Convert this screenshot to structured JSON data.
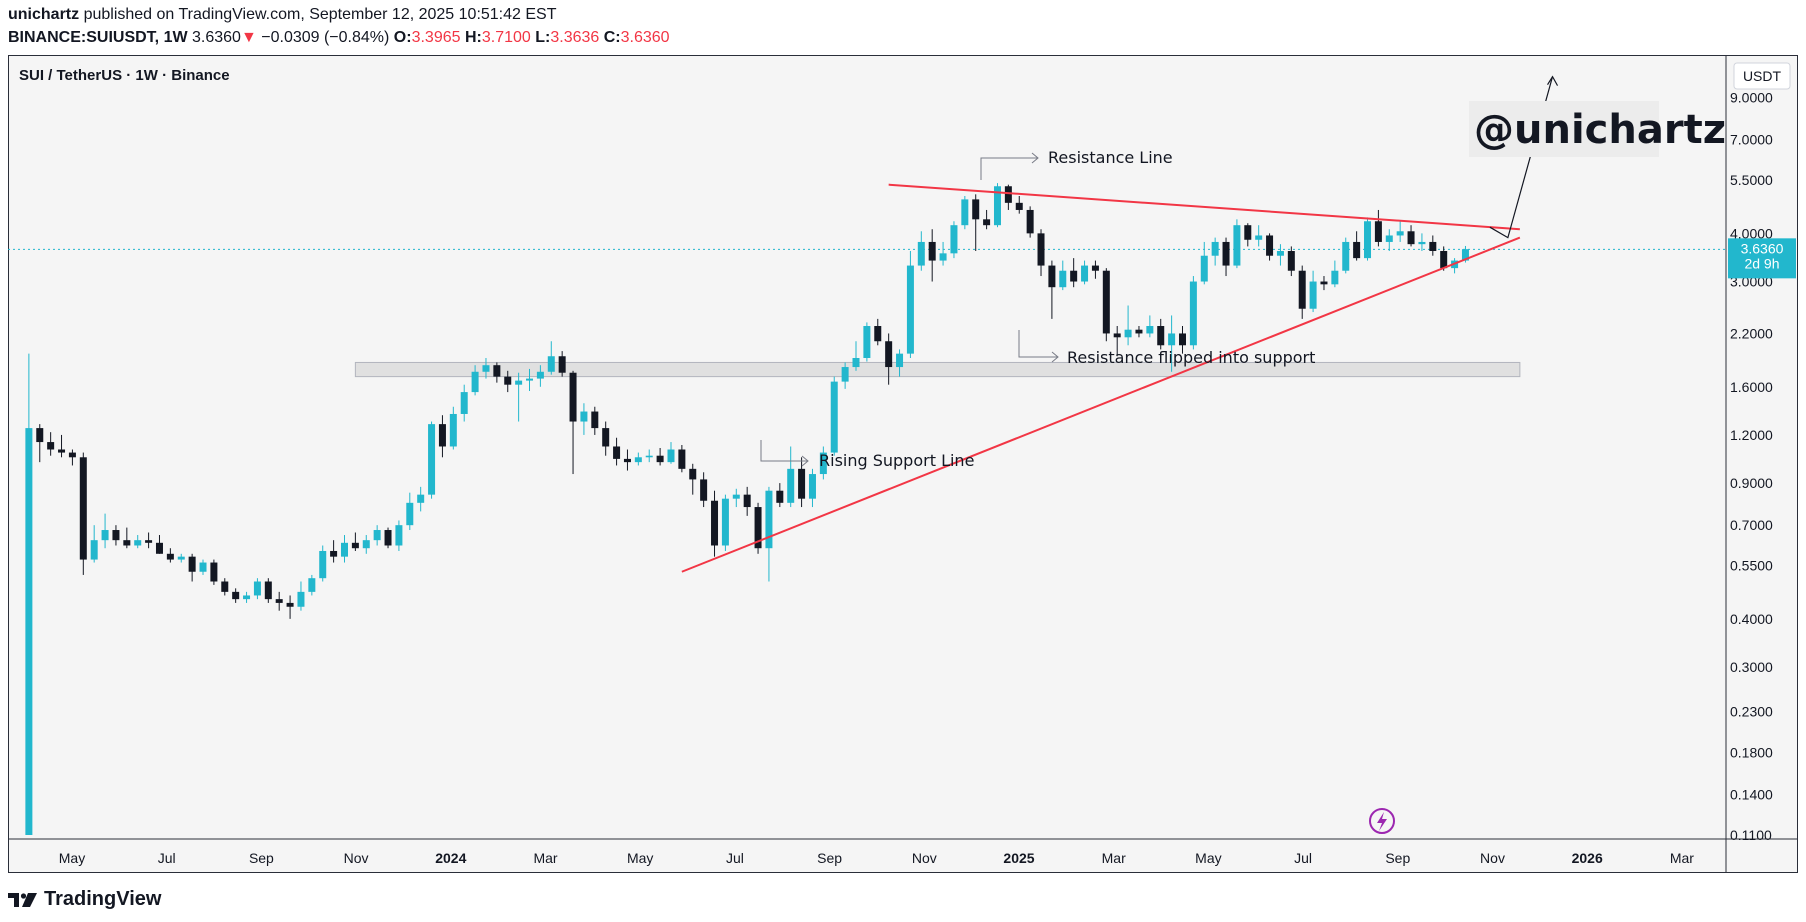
{
  "header": {
    "line1_user": "unichartz",
    "line1_rest": "published on TradingView.com, September 12, 2025 10:51:42 EST",
    "symbol": "BINANCE:SUIUSDT, 1W",
    "last": "3.6360",
    "arrow": "▼",
    "change": "−0.0309 (−0.84%)",
    "o_label": "O:",
    "o_value": "3.3965",
    "h_label": "H:",
    "h_value": "3.7100",
    "l_label": "L:",
    "l_value": "3.3636",
    "c_label": "C:",
    "c_value": "3.6360"
  },
  "pair_title": "SUI / TetherUS · 1W · Binance",
  "currency": "USDT",
  "price_badge": {
    "price": "3.6360",
    "countdown": "2d 9h"
  },
  "watermark": "@unichartz",
  "footer": {
    "brand": "TradingView"
  },
  "colors": {
    "up": "#22b7cd",
    "down": "#131722",
    "trendline": "#f23645",
    "last_price": "#22b7cd"
  },
  "chart_data": {
    "type": "candlestick",
    "scale": "log",
    "ylim": [
      0.11,
      11
    ],
    "y_ticks": [
      "9.0000",
      "7.0000",
      "5.5000",
      "4.0000",
      "3.0000",
      "2.2000",
      "1.6000",
      "1.2000",
      "0.9000",
      "0.7000",
      "0.5500",
      "0.4000",
      "0.3000",
      "0.2300",
      "0.1800",
      "0.1400",
      "0.1100"
    ],
    "x_ticks": [
      "May",
      "Jul",
      "Sep",
      "Nov",
      "2024",
      "Mar",
      "May",
      "Jul",
      "Sep",
      "Nov",
      "2025",
      "Mar",
      "May",
      "Jul",
      "Sep",
      "Nov",
      "2026",
      "Mar"
    ],
    "x_range": [
      "2023-04-24",
      "2026-04-15"
    ],
    "candles": [
      {
        "d": "2023-05-01",
        "o": 0.11,
        "h": 1.95,
        "l": 0.11,
        "c": 1.25
      },
      {
        "d": "2023-05-08",
        "o": 1.25,
        "h": 1.28,
        "l": 1.02,
        "c": 1.15
      },
      {
        "d": "2023-05-15",
        "o": 1.15,
        "h": 1.22,
        "l": 1.06,
        "c": 1.1
      },
      {
        "d": "2023-05-22",
        "o": 1.1,
        "h": 1.2,
        "l": 1.05,
        "c": 1.08
      },
      {
        "d": "2023-05-29",
        "o": 1.08,
        "h": 1.1,
        "l": 1.0,
        "c": 1.05
      },
      {
        "d": "2023-06-05",
        "o": 1.05,
        "h": 1.08,
        "l": 0.52,
        "c": 0.57
      },
      {
        "d": "2023-06-12",
        "o": 0.57,
        "h": 0.7,
        "l": 0.56,
        "c": 0.64
      },
      {
        "d": "2023-06-19",
        "o": 0.64,
        "h": 0.75,
        "l": 0.61,
        "c": 0.68
      },
      {
        "d": "2023-06-26",
        "o": 0.68,
        "h": 0.7,
        "l": 0.62,
        "c": 0.64
      },
      {
        "d": "2023-07-03",
        "o": 0.64,
        "h": 0.69,
        "l": 0.61,
        "c": 0.62
      },
      {
        "d": "2023-07-10",
        "o": 0.62,
        "h": 0.66,
        "l": 0.61,
        "c": 0.64
      },
      {
        "d": "2023-07-17",
        "o": 0.64,
        "h": 0.67,
        "l": 0.61,
        "c": 0.63
      },
      {
        "d": "2023-07-24",
        "o": 0.63,
        "h": 0.66,
        "l": 0.59,
        "c": 0.59
      },
      {
        "d": "2023-07-31",
        "o": 0.59,
        "h": 0.61,
        "l": 0.56,
        "c": 0.57
      },
      {
        "d": "2023-08-07",
        "o": 0.57,
        "h": 0.59,
        "l": 0.56,
        "c": 0.58
      },
      {
        "d": "2023-08-14",
        "o": 0.58,
        "h": 0.59,
        "l": 0.5,
        "c": 0.53
      },
      {
        "d": "2023-08-21",
        "o": 0.53,
        "h": 0.57,
        "l": 0.52,
        "c": 0.56
      },
      {
        "d": "2023-08-28",
        "o": 0.56,
        "h": 0.57,
        "l": 0.49,
        "c": 0.5
      },
      {
        "d": "2023-09-04",
        "o": 0.5,
        "h": 0.51,
        "l": 0.46,
        "c": 0.47
      },
      {
        "d": "2023-09-11",
        "o": 0.47,
        "h": 0.48,
        "l": 0.44,
        "c": 0.45
      },
      {
        "d": "2023-09-18",
        "o": 0.45,
        "h": 0.47,
        "l": 0.44,
        "c": 0.46
      },
      {
        "d": "2023-09-25",
        "o": 0.46,
        "h": 0.51,
        "l": 0.45,
        "c": 0.5
      },
      {
        "d": "2023-10-02",
        "o": 0.5,
        "h": 0.51,
        "l": 0.44,
        "c": 0.45
      },
      {
        "d": "2023-10-09",
        "o": 0.45,
        "h": 0.47,
        "l": 0.42,
        "c": 0.44
      },
      {
        "d": "2023-10-16",
        "o": 0.44,
        "h": 0.46,
        "l": 0.4,
        "c": 0.43
      },
      {
        "d": "2023-10-23",
        "o": 0.43,
        "h": 0.5,
        "l": 0.42,
        "c": 0.47
      },
      {
        "d": "2023-10-30",
        "o": 0.47,
        "h": 0.52,
        "l": 0.46,
        "c": 0.51
      },
      {
        "d": "2023-11-06",
        "o": 0.51,
        "h": 0.62,
        "l": 0.5,
        "c": 0.6
      },
      {
        "d": "2023-11-13",
        "o": 0.6,
        "h": 0.64,
        "l": 0.56,
        "c": 0.58
      },
      {
        "d": "2023-11-20",
        "o": 0.58,
        "h": 0.66,
        "l": 0.56,
        "c": 0.63
      },
      {
        "d": "2023-11-27",
        "o": 0.63,
        "h": 0.67,
        "l": 0.6,
        "c": 0.61
      },
      {
        "d": "2023-12-04",
        "o": 0.61,
        "h": 0.66,
        "l": 0.59,
        "c": 0.64
      },
      {
        "d": "2023-12-11",
        "o": 0.64,
        "h": 0.7,
        "l": 0.62,
        "c": 0.68
      },
      {
        "d": "2023-12-18",
        "o": 0.68,
        "h": 0.69,
        "l": 0.61,
        "c": 0.62
      },
      {
        "d": "2023-12-25",
        "o": 0.62,
        "h": 0.72,
        "l": 0.6,
        "c": 0.7
      },
      {
        "d": "2024-01-01",
        "o": 0.7,
        "h": 0.85,
        "l": 0.68,
        "c": 0.8
      },
      {
        "d": "2024-01-08",
        "o": 0.8,
        "h": 0.88,
        "l": 0.76,
        "c": 0.84
      },
      {
        "d": "2024-01-15",
        "o": 0.84,
        "h": 1.3,
        "l": 0.82,
        "c": 1.28
      },
      {
        "d": "2024-01-22",
        "o": 1.28,
        "h": 1.35,
        "l": 1.05,
        "c": 1.12
      },
      {
        "d": "2024-01-29",
        "o": 1.12,
        "h": 1.42,
        "l": 1.1,
        "c": 1.36
      },
      {
        "d": "2024-02-05",
        "o": 1.36,
        "h": 1.62,
        "l": 1.3,
        "c": 1.55
      },
      {
        "d": "2024-02-12",
        "o": 1.55,
        "h": 1.82,
        "l": 1.52,
        "c": 1.75
      },
      {
        "d": "2024-02-19",
        "o": 1.75,
        "h": 1.9,
        "l": 1.68,
        "c": 1.82
      },
      {
        "d": "2024-02-26",
        "o": 1.82,
        "h": 1.85,
        "l": 1.64,
        "c": 1.7
      },
      {
        "d": "2024-03-04",
        "o": 1.7,
        "h": 1.76,
        "l": 1.55,
        "c": 1.62
      },
      {
        "d": "2024-03-11",
        "o": 1.62,
        "h": 1.74,
        "l": 1.3,
        "c": 1.66
      },
      {
        "d": "2024-03-18",
        "o": 1.66,
        "h": 1.78,
        "l": 1.56,
        "c": 1.68
      },
      {
        "d": "2024-03-25",
        "o": 1.68,
        "h": 1.82,
        "l": 1.6,
        "c": 1.75
      },
      {
        "d": "2024-04-01",
        "o": 1.75,
        "h": 2.1,
        "l": 1.72,
        "c": 1.92
      },
      {
        "d": "2024-04-08",
        "o": 1.92,
        "h": 1.98,
        "l": 1.7,
        "c": 1.74
      },
      {
        "d": "2024-04-15",
        "o": 1.74,
        "h": 1.76,
        "l": 0.95,
        "c": 1.3
      },
      {
        "d": "2024-04-22",
        "o": 1.3,
        "h": 1.45,
        "l": 1.2,
        "c": 1.38
      },
      {
        "d": "2024-04-29",
        "o": 1.38,
        "h": 1.42,
        "l": 1.2,
        "c": 1.25
      },
      {
        "d": "2024-05-06",
        "o": 1.25,
        "h": 1.3,
        "l": 1.06,
        "c": 1.12
      },
      {
        "d": "2024-05-13",
        "o": 1.12,
        "h": 1.18,
        "l": 1.0,
        "c": 1.04
      },
      {
        "d": "2024-05-20",
        "o": 1.04,
        "h": 1.1,
        "l": 0.97,
        "c": 1.02
      },
      {
        "d": "2024-05-27",
        "o": 1.02,
        "h": 1.08,
        "l": 1.0,
        "c": 1.05
      },
      {
        "d": "2024-06-03",
        "o": 1.05,
        "h": 1.1,
        "l": 1.02,
        "c": 1.06
      },
      {
        "d": "2024-06-10",
        "o": 1.06,
        "h": 1.11,
        "l": 1.0,
        "c": 1.02
      },
      {
        "d": "2024-06-17",
        "o": 1.02,
        "h": 1.15,
        "l": 1.01,
        "c": 1.1
      },
      {
        "d": "2024-06-24",
        "o": 1.1,
        "h": 1.13,
        "l": 0.96,
        "c": 0.98
      },
      {
        "d": "2024-07-01",
        "o": 0.98,
        "h": 1.01,
        "l": 0.84,
        "c": 0.92
      },
      {
        "d": "2024-07-08",
        "o": 0.92,
        "h": 0.96,
        "l": 0.78,
        "c": 0.81
      },
      {
        "d": "2024-07-15",
        "o": 0.81,
        "h": 0.86,
        "l": 0.58,
        "c": 0.62
      },
      {
        "d": "2024-07-22",
        "o": 0.62,
        "h": 0.84,
        "l": 0.6,
        "c": 0.82
      },
      {
        "d": "2024-07-29",
        "o": 0.82,
        "h": 0.87,
        "l": 0.78,
        "c": 0.84
      },
      {
        "d": "2024-08-05",
        "o": 0.84,
        "h": 0.88,
        "l": 0.74,
        "c": 0.78
      },
      {
        "d": "2024-08-12",
        "o": 0.78,
        "h": 0.8,
        "l": 0.59,
        "c": 0.61
      },
      {
        "d": "2024-08-19",
        "o": 0.61,
        "h": 0.88,
        "l": 0.5,
        "c": 0.86
      },
      {
        "d": "2024-08-26",
        "o": 0.86,
        "h": 0.9,
        "l": 0.78,
        "c": 0.8
      },
      {
        "d": "2024-09-02",
        "o": 0.8,
        "h": 1.12,
        "l": 0.78,
        "c": 0.98
      },
      {
        "d": "2024-09-09",
        "o": 0.98,
        "h": 1.05,
        "l": 0.78,
        "c": 0.82
      },
      {
        "d": "2024-09-16",
        "o": 0.82,
        "h": 0.98,
        "l": 0.78,
        "c": 0.95
      },
      {
        "d": "2024-09-23",
        "o": 0.95,
        "h": 1.12,
        "l": 0.92,
        "c": 1.08
      },
      {
        "d": "2024-09-30",
        "o": 1.08,
        "h": 1.7,
        "l": 1.06,
        "c": 1.65
      },
      {
        "d": "2024-10-07",
        "o": 1.65,
        "h": 1.85,
        "l": 1.58,
        "c": 1.8
      },
      {
        "d": "2024-10-14",
        "o": 1.8,
        "h": 2.1,
        "l": 1.76,
        "c": 1.9
      },
      {
        "d": "2024-10-21",
        "o": 1.9,
        "h": 2.35,
        "l": 1.86,
        "c": 2.3
      },
      {
        "d": "2024-10-28",
        "o": 2.3,
        "h": 2.4,
        "l": 2.05,
        "c": 2.1
      },
      {
        "d": "2024-11-04",
        "o": 2.1,
        "h": 2.2,
        "l": 1.62,
        "c": 1.8
      },
      {
        "d": "2024-11-11",
        "o": 1.8,
        "h": 2.0,
        "l": 1.7,
        "c": 1.95
      },
      {
        "d": "2024-11-18",
        "o": 1.95,
        "h": 3.6,
        "l": 1.9,
        "c": 3.3
      },
      {
        "d": "2024-11-25",
        "o": 3.3,
        "h": 4.05,
        "l": 3.2,
        "c": 3.8
      },
      {
        "d": "2024-12-02",
        "o": 3.8,
        "h": 4.1,
        "l": 3.0,
        "c": 3.4
      },
      {
        "d": "2024-12-09",
        "o": 3.4,
        "h": 3.8,
        "l": 3.3,
        "c": 3.55
      },
      {
        "d": "2024-12-16",
        "o": 3.55,
        "h": 4.3,
        "l": 3.45,
        "c": 4.2
      },
      {
        "d": "2024-12-23",
        "o": 4.2,
        "h": 5.0,
        "l": 4.1,
        "c": 4.9
      },
      {
        "d": "2024-12-30",
        "o": 4.9,
        "h": 5.05,
        "l": 3.6,
        "c": 4.35
      },
      {
        "d": "2025-01-06",
        "o": 4.35,
        "h": 4.6,
        "l": 4.1,
        "c": 4.2
      },
      {
        "d": "2025-01-13",
        "o": 4.2,
        "h": 5.4,
        "l": 4.15,
        "c": 5.3
      },
      {
        "d": "2025-01-20",
        "o": 5.3,
        "h": 5.35,
        "l": 4.6,
        "c": 4.8
      },
      {
        "d": "2025-01-27",
        "o": 4.8,
        "h": 5.0,
        "l": 4.5,
        "c": 4.6
      },
      {
        "d": "2025-02-03",
        "o": 4.6,
        "h": 4.7,
        "l": 3.9,
        "c": 4.0
      },
      {
        "d": "2025-02-10",
        "o": 4.0,
        "h": 4.1,
        "l": 3.1,
        "c": 3.3
      },
      {
        "d": "2025-02-17",
        "o": 3.3,
        "h": 3.4,
        "l": 2.4,
        "c": 2.9
      },
      {
        "d": "2025-02-24",
        "o": 2.9,
        "h": 3.4,
        "l": 2.85,
        "c": 3.2
      },
      {
        "d": "2025-03-03",
        "o": 3.2,
        "h": 3.45,
        "l": 2.9,
        "c": 3.0
      },
      {
        "d": "2025-03-10",
        "o": 3.0,
        "h": 3.4,
        "l": 2.95,
        "c": 3.3
      },
      {
        "d": "2025-03-17",
        "o": 3.3,
        "h": 3.4,
        "l": 3.05,
        "c": 3.2
      },
      {
        "d": "2025-03-24",
        "o": 3.2,
        "h": 3.25,
        "l": 2.1,
        "c": 2.2
      },
      {
        "d": "2025-03-31",
        "o": 2.2,
        "h": 2.3,
        "l": 1.92,
        "c": 2.15
      },
      {
        "d": "2025-04-07",
        "o": 2.15,
        "h": 2.6,
        "l": 2.05,
        "c": 2.25
      },
      {
        "d": "2025-04-14",
        "o": 2.25,
        "h": 2.3,
        "l": 2.15,
        "c": 2.2
      },
      {
        "d": "2025-04-21",
        "o": 2.2,
        "h": 2.45,
        "l": 2.15,
        "c": 2.3
      },
      {
        "d": "2025-04-28",
        "o": 2.3,
        "h": 2.4,
        "l": 2.0,
        "c": 2.05
      },
      {
        "d": "2025-05-05",
        "o": 2.05,
        "h": 2.45,
        "l": 1.75,
        "c": 2.2
      },
      {
        "d": "2025-05-12",
        "o": 2.2,
        "h": 2.3,
        "l": 1.95,
        "c": 2.05
      },
      {
        "d": "2025-05-19",
        "o": 2.05,
        "h": 3.1,
        "l": 2.0,
        "c": 3.0
      },
      {
        "d": "2025-05-26",
        "o": 3.0,
        "h": 3.8,
        "l": 2.95,
        "c": 3.5
      },
      {
        "d": "2025-06-02",
        "o": 3.5,
        "h": 3.9,
        "l": 3.3,
        "c": 3.8
      },
      {
        "d": "2025-06-09",
        "o": 3.8,
        "h": 3.9,
        "l": 3.1,
        "c": 3.3
      },
      {
        "d": "2025-06-16",
        "o": 3.3,
        "h": 4.35,
        "l": 3.25,
        "c": 4.2
      },
      {
        "d": "2025-06-23",
        "o": 4.2,
        "h": 4.25,
        "l": 3.7,
        "c": 3.85
      },
      {
        "d": "2025-06-30",
        "o": 3.85,
        "h": 4.2,
        "l": 3.7,
        "c": 3.95
      },
      {
        "d": "2025-07-07",
        "o": 3.95,
        "h": 4.0,
        "l": 3.4,
        "c": 3.5
      },
      {
        "d": "2025-07-14",
        "o": 3.5,
        "h": 3.75,
        "l": 3.3,
        "c": 3.6
      },
      {
        "d": "2025-07-21",
        "o": 3.6,
        "h": 3.7,
        "l": 3.1,
        "c": 3.2
      },
      {
        "d": "2025-07-28",
        "o": 3.2,
        "h": 3.3,
        "l": 2.4,
        "c": 2.55
      },
      {
        "d": "2025-08-04",
        "o": 2.55,
        "h": 3.2,
        "l": 2.5,
        "c": 3.0
      },
      {
        "d": "2025-08-11",
        "o": 3.0,
        "h": 3.1,
        "l": 2.85,
        "c": 2.95
      },
      {
        "d": "2025-08-18",
        "o": 2.95,
        "h": 3.4,
        "l": 2.9,
        "c": 3.2
      },
      {
        "d": "2025-08-25",
        "o": 3.2,
        "h": 3.9,
        "l": 3.15,
        "c": 3.8
      },
      {
        "d": "2025-09-01",
        "o": 3.8,
        "h": 4.05,
        "l": 3.4,
        "c": 3.45
      },
      {
        "d": "2025-09-08",
        "o": 3.45,
        "h": 4.4,
        "l": 3.4,
        "c": 4.3
      },
      {
        "d": "2025-09-15",
        "o": 4.3,
        "h": 4.6,
        "l": 3.7,
        "c": 3.8
      },
      {
        "d": "2025-09-22",
        "o": 3.8,
        "h": 4.1,
        "l": 3.6,
        "c": 3.95
      },
      {
        "d": "2025-09-29",
        "o": 3.95,
        "h": 4.3,
        "l": 3.8,
        "c": 4.05
      },
      {
        "d": "2025-10-06",
        "o": 4.05,
        "h": 4.2,
        "l": 3.7,
        "c": 3.75
      },
      {
        "d": "2025-10-13",
        "o": 3.75,
        "h": 4.0,
        "l": 3.6,
        "c": 3.8
      },
      {
        "d": "2025-10-20",
        "o": 3.8,
        "h": 3.95,
        "l": 3.5,
        "c": 3.6
      },
      {
        "d": "2025-10-27",
        "o": 3.6,
        "h": 3.7,
        "l": 3.2,
        "c": 3.25
      },
      {
        "d": "2025-11-03",
        "o": 3.25,
        "h": 3.45,
        "l": 3.15,
        "c": 3.4
      },
      {
        "d": "2025-11-10",
        "o": 3.4,
        "h": 3.71,
        "l": 3.36,
        "c": 3.64
      }
    ],
    "last_price": 3.636,
    "support_zone": {
      "low": 1.7,
      "high": 1.85,
      "from": "2023-11-27",
      "to": "2025-12-15"
    },
    "trendlines": [
      {
        "name": "Resistance Line",
        "from": [
          "2024-11-04",
          5.35
        ],
        "to": [
          "2025-12-15",
          4.1
        ]
      },
      {
        "name": "Rising Support Line",
        "from": [
          "2024-06-24",
          0.53
        ],
        "to": [
          "2025-12-15",
          3.9
        ]
      }
    ],
    "annotations": [
      "Resistance Line",
      "Resistance flipped into support",
      "Rising Support Line"
    ]
  }
}
